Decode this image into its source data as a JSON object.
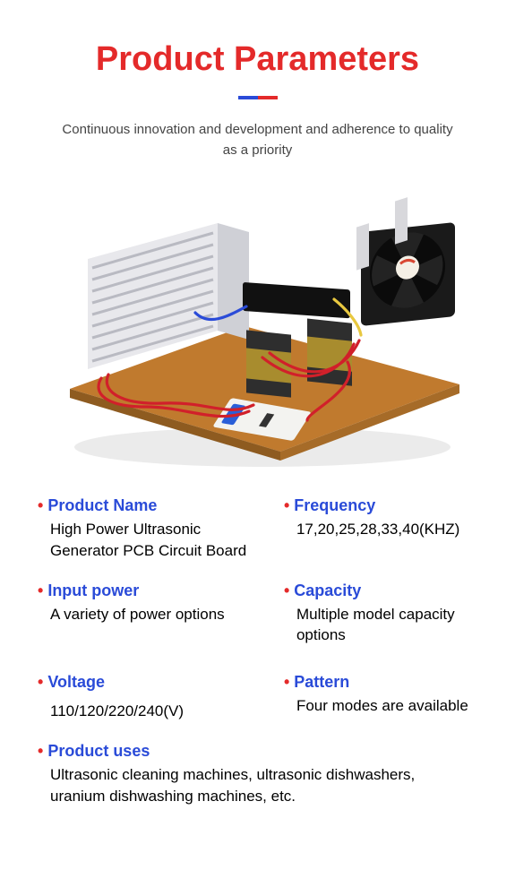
{
  "header": {
    "title": "Product Parameters",
    "title_color": "#e42a2a",
    "title_fontsize": 38,
    "underline_left_color": "#2a4bd8",
    "underline_right_color": "#e42a2a",
    "subtitle": "Continuous innovation and development and adherence to quality as a priority",
    "subtitle_color": "#444444",
    "subtitle_fontsize": 15
  },
  "image": {
    "board_color": "#c07a2e",
    "heatsink_color": "#e8e8ec",
    "fan_frame_color": "#1a1a1a",
    "fan_label_color": "#f5f0e6",
    "fan_accent_color": "#d94833",
    "transformer_core_color": "#2e2e2e",
    "transformer_wrap_color": "#a88c2e",
    "wire_red": "#d1202a",
    "wire_blue": "#2a4bd8",
    "wire_yellow": "#e8c840",
    "breaker_body": "#f3f3f0",
    "breaker_accent": "#2a5fd8"
  },
  "label_color": "#2a4bd8",
  "bullet_color": "#e42a2a",
  "specs": {
    "product_name": {
      "label": "Product Name",
      "value": "High Power Ultrasonic Generator PCB Circuit Board"
    },
    "frequency": {
      "label": "Frequency",
      "value": "17,20,25,28,33,40(KHZ)"
    },
    "input_power": {
      "label": "Input power",
      "value": "A variety of power options"
    },
    "capacity": {
      "label": "Capacity",
      "value": "Multiple model capacity options"
    },
    "voltage": {
      "label": "Voltage",
      "value": "110/120/220/240(V)"
    },
    "pattern": {
      "label": "Pattern",
      "value": "Four modes are available"
    },
    "product_uses": {
      "label": "Product uses",
      "value": "Ultrasonic cleaning machines, ultrasonic dishwashers, uranium dishwashing machines, etc."
    }
  }
}
